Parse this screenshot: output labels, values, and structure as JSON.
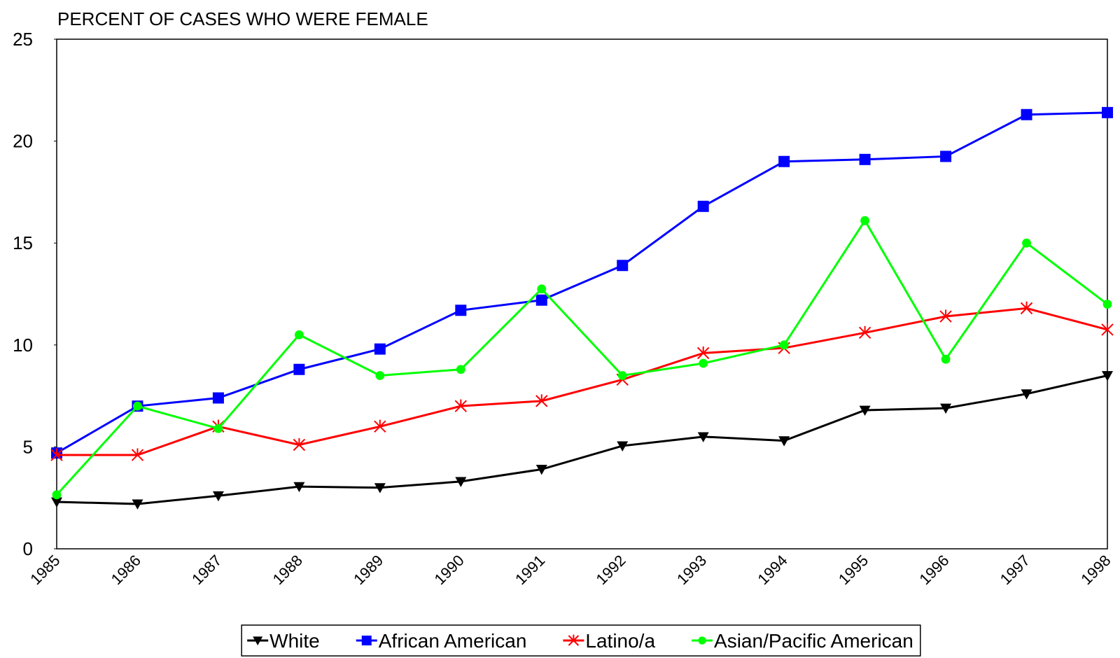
{
  "chart_data": {
    "type": "line",
    "title": "PERCENT OF CASES WHO WERE FEMALE",
    "categories": [
      "1985",
      "1986",
      "1987",
      "1988",
      "1989",
      "1990",
      "1991",
      "1992",
      "1993",
      "1994",
      "1995",
      "1996",
      "1997",
      "1998"
    ],
    "ylim": [
      0,
      25
    ],
    "yticks": [
      0,
      5,
      10,
      15,
      20,
      25
    ],
    "grid": false,
    "legend": "bottom",
    "series": [
      {
        "name": "White",
        "color": "#000000",
        "marker": "triangle-down",
        "values": [
          2.3,
          2.2,
          2.6,
          3.05,
          3.0,
          3.3,
          3.9,
          5.05,
          5.5,
          5.3,
          6.8,
          6.9,
          7.6,
          8.5
        ]
      },
      {
        "name": "African American",
        "color": "#0000ff",
        "marker": "square",
        "values": [
          4.7,
          7.0,
          7.4,
          8.8,
          9.8,
          11.7,
          12.2,
          13.9,
          16.8,
          19.0,
          19.1,
          19.25,
          21.3,
          21.4
        ]
      },
      {
        "name": "Latino/a",
        "color": "#ff0000",
        "marker": "star",
        "values": [
          4.6,
          4.6,
          6.0,
          5.1,
          6.0,
          7.0,
          7.25,
          8.3,
          9.6,
          9.85,
          10.6,
          11.4,
          11.8,
          10.75
        ]
      },
      {
        "name": "Asian/Pacific American",
        "color": "#00ff00",
        "marker": "circle",
        "values": [
          2.65,
          7.0,
          5.9,
          10.5,
          8.5,
          8.8,
          12.75,
          8.5,
          9.1,
          10.0,
          16.1,
          9.3,
          15.0,
          12.0
        ]
      }
    ]
  }
}
